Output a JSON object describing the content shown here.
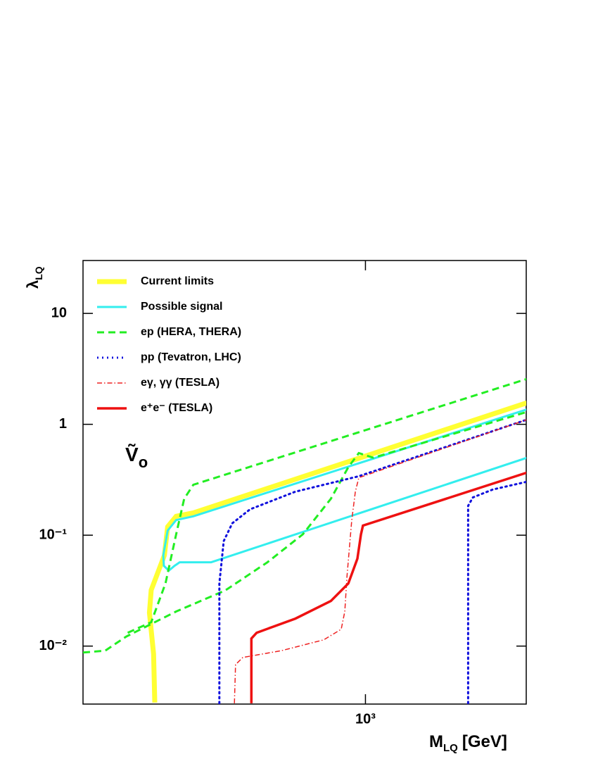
{
  "chart_data": {
    "type": "line",
    "x_label": {
      "main": "M",
      "sub": "LQ",
      "unit": "[GeV]"
    },
    "y_label": {
      "main": "λ",
      "sub": "LQ"
    },
    "annotation": {
      "main": "Ṽ",
      "sub": "o"
    },
    "xscale": "log",
    "yscale": "log",
    "xlim": [
      200,
      2500
    ],
    "ylim": [
      0.003,
      30
    ],
    "xticks": [
      {
        "value": 1000,
        "label": "10³"
      }
    ],
    "yticks": [
      10,
      1,
      {
        "value": 0.1,
        "label": "10⁻¹"
      },
      {
        "value": 0.01,
        "label": "10⁻²"
      }
    ],
    "legend": "upper left",
    "series": [
      {
        "name": "Current limits",
        "color": "#ffff33",
        "style": "solid",
        "linewidth": 7,
        "x": [
          301,
          299,
          292,
          295,
          318,
          324,
          340,
          375,
          2506
        ],
        "values": [
          0.0031,
          0.0085,
          0.02,
          0.032,
          0.066,
          0.119,
          0.148,
          0.159,
          1.56
        ]
      },
      {
        "name": "Possible signal",
        "color": "#33eeee",
        "style": "solid",
        "linewidth": 3,
        "x": [
          2506,
          468,
          415,
          347,
          337,
          326,
          317,
          316,
          324,
          340,
          375,
          2506
        ],
        "values": [
          0.498,
          0.0659,
          0.057,
          0.057,
          0.053,
          0.0479,
          0.053,
          0.066,
          0.11,
          0.137,
          0.148,
          1.36
        ]
      },
      {
        "name": "ep   (HERA, THERA)",
        "color": "#22ee22",
        "style": "dashed",
        "linewidth": 3,
        "x": [
          258,
          295,
          320,
          340,
          356,
          375,
          2506,
          null,
          200,
          227,
          256,
          340,
          450,
          572,
          700,
          821,
          907,
          963,
          1045,
          2506
        ],
        "values": [
          0.0132,
          0.0164,
          0.0367,
          0.102,
          0.213,
          0.285,
          2.56,
          null,
          0.00875,
          0.0091,
          0.0122,
          0.0205,
          0.0318,
          0.057,
          0.102,
          0.213,
          0.411,
          0.55,
          0.5,
          1.29
        ]
      },
      {
        "name": "pp   (Tevatron, LHC)",
        "color": "#1111dd",
        "style": "dotted",
        "linewidth": 3,
        "x": [
          435,
          435,
          446,
          468,
          518,
          671,
          963,
          2506,
          null,
          1795,
          1795,
          1845,
          2065,
          2506
        ],
        "values": [
          0.00305,
          0.0367,
          0.0885,
          0.128,
          0.171,
          0.247,
          0.34,
          1.1,
          null,
          0.00305,
          0.184,
          0.219,
          0.258,
          0.303
        ]
      },
      {
        "name": "eγ,  γγ   (TESLA)",
        "color": "#ee2222",
        "style": "dashdot",
        "linewidth": 1.5,
        "x": [
          474,
          477,
          497,
          620,
          789,
          871,
          889,
          900,
          925,
          944,
          963,
          2506
        ],
        "values": [
          0.00305,
          0.0068,
          0.0079,
          0.0091,
          0.0114,
          0.0142,
          0.0205,
          0.0425,
          0.137,
          0.247,
          0.33,
          1.1
        ]
      },
      {
        "name": "e⁺e⁻   (TESLA)",
        "color": "#ee1111",
        "style": "solid",
        "linewidth": 3.5,
        "x": [
          522,
          522,
          538,
          671,
          821,
          907,
          955,
          975,
          986,
          2506
        ],
        "values": [
          0.00305,
          0.0117,
          0.0132,
          0.0177,
          0.0255,
          0.0367,
          0.0614,
          0.102,
          0.122,
          0.366
        ]
      }
    ]
  }
}
